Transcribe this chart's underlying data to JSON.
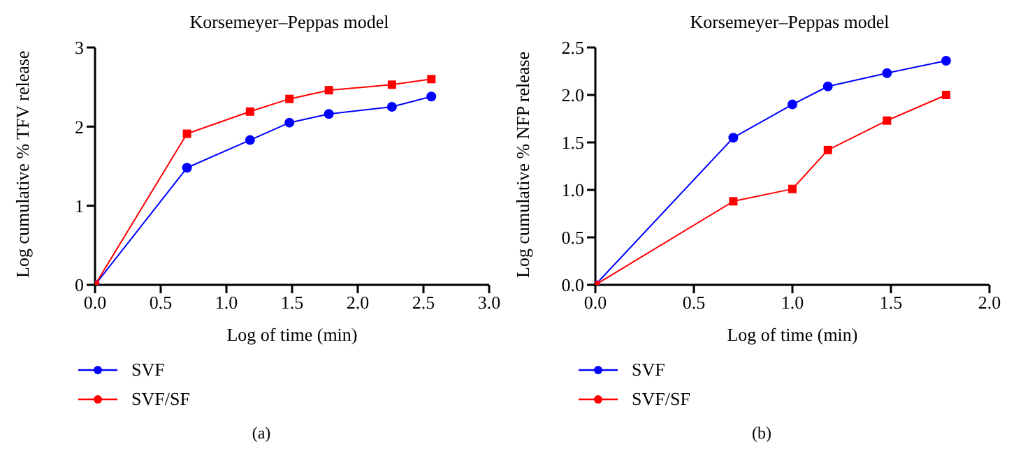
{
  "chart_data": [
    {
      "type": "line",
      "title": "Korsemeyer–Peppas model",
      "xlabel": "Log of time (min)",
      "ylabel": "Log cumulative % TFV release",
      "xlim": [
        0,
        3
      ],
      "xticks": [
        {
          "value": 0,
          "label": "0.0"
        },
        {
          "value": 0.5,
          "label": "0.5"
        },
        {
          "value": 1,
          "label": "1.0"
        },
        {
          "value": 1.5,
          "label": "1.5"
        },
        {
          "value": 2,
          "label": "2.0"
        },
        {
          "value": 2.5,
          "label": "2.5"
        },
        {
          "value": 3,
          "label": "3.0"
        }
      ],
      "ylim": [
        0,
        3
      ],
      "yticks": [
        0,
        1,
        2,
        3
      ],
      "grid": false,
      "legend": "bottom left",
      "line_style": "solid",
      "annotations": [
        "(a)"
      ],
      "x": [
        0,
        0.7,
        1.18,
        1.48,
        1.78,
        2.26,
        2.56
      ],
      "series": [
        {
          "name": "SVF",
          "color": "#0000ff",
          "marker": "circle",
          "values": [
            0,
            1.48,
            1.83,
            2.05,
            2.16,
            2.25,
            2.38
          ]
        },
        {
          "name": "SVF/SF",
          "color": "#ff0000",
          "marker": "square",
          "values": [
            0,
            1.91,
            2.19,
            2.35,
            2.46,
            2.53,
            2.6
          ]
        }
      ]
    },
    {
      "type": "line",
      "title": "Korsemeyer–Peppas model",
      "xlabel": "Log of time (min)",
      "ylabel": "Log cumulative % NFP release",
      "xlim": [
        0,
        2
      ],
      "xticks": [
        {
          "value": 0,
          "label": "0.0"
        },
        {
          "value": 0.5,
          "label": "0.5"
        },
        {
          "value": 1,
          "label": "1.0"
        },
        {
          "value": 1.5,
          "label": "1.5"
        },
        {
          "value": 2,
          "label": "2.0"
        }
      ],
      "ylim": [
        0,
        2.5
      ],
      "yticks": [
        {
          "value": 0,
          "label": "0.0"
        },
        {
          "value": 0.5,
          "label": "0.5"
        },
        {
          "value": 1,
          "label": "1.0"
        },
        {
          "value": 1.5,
          "label": "1.5"
        },
        {
          "value": 2,
          "label": "2.0"
        },
        {
          "value": 2.5,
          "label": "2.5"
        }
      ],
      "grid": false,
      "legend": "bottom left",
      "line_style": "solid",
      "annotations": [
        "(b)"
      ],
      "x": [
        0,
        0.7,
        1,
        1.18,
        1.48,
        1.78
      ],
      "series": [
        {
          "name": "SVF",
          "color": "#0000ff",
          "marker": "circle",
          "values": [
            0,
            1.55,
            1.9,
            2.09,
            2.23,
            2.36
          ]
        },
        {
          "name": "SVF/SF",
          "color": "#ff0000",
          "marker": "square",
          "values": [
            0,
            0.88,
            1.01,
            1.42,
            1.73,
            2.0
          ]
        }
      ]
    }
  ]
}
